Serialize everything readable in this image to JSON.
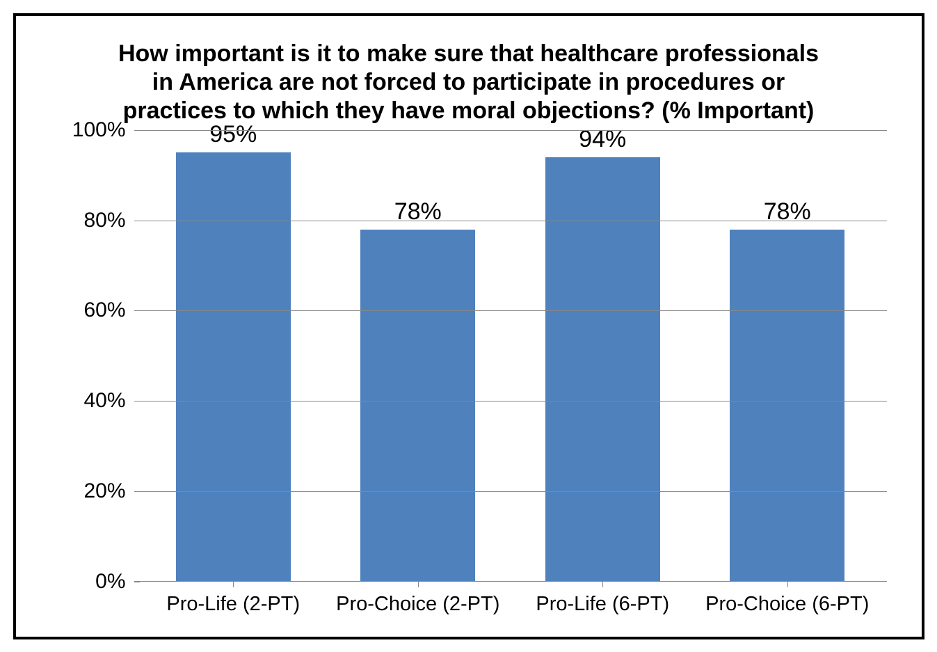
{
  "chart": {
    "type": "bar",
    "title": "How important is it to make sure that healthcare professionals in America are not forced to participate in procedures or practices to which they have moral objections? (% Important)",
    "title_fontsize": 34,
    "title_fontweight": "bold",
    "title_color": "#000000",
    "categories": [
      "Pro-Life (2-PT)",
      "Pro-Choice (2-PT)",
      "Pro-Life (6-PT)",
      "Pro-Choice (6-PT)"
    ],
    "values": [
      95,
      78,
      94,
      78
    ],
    "value_labels": [
      "95%",
      "78%",
      "94%",
      "78%"
    ],
    "bar_colors": [
      "#4f81bd",
      "#4f81bd",
      "#4f81bd",
      "#4f81bd"
    ],
    "bar_width": 0.62,
    "ylim": [
      0,
      100
    ],
    "ytick_step": 20,
    "ytick_labels": [
      "0%",
      "20%",
      "40%",
      "60%",
      "80%",
      "100%"
    ],
    "ytick_values": [
      0,
      20,
      40,
      60,
      80,
      100
    ],
    "grid_color": "#888888",
    "background_color": "#ffffff",
    "axis_label_fontsize": 30,
    "data_label_fontsize": 34,
    "x_label_fontsize": 29,
    "border_color": "#000000",
    "border_width": 4
  }
}
